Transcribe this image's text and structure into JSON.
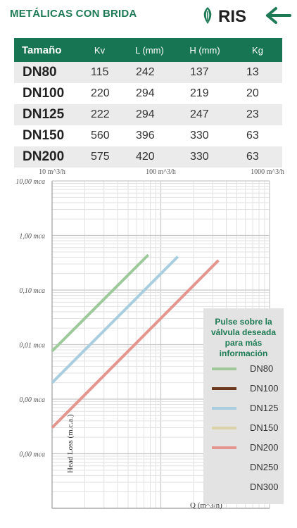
{
  "header": {
    "title": "METÁLICAS CON BRIDA",
    "logo_text": "RIS",
    "brand_color": "#1d7a55"
  },
  "table": {
    "columns": [
      "Tamaño",
      "Kv",
      "L (mm)",
      "H (mm)",
      "Kg"
    ],
    "rows": [
      {
        "size": "DN80",
        "kv": "115",
        "l": "242",
        "h": "137",
        "kg": "13"
      },
      {
        "size": "DN100",
        "kv": "220",
        "l": "294",
        "h": "219",
        "kg": "20"
      },
      {
        "size": "DN125",
        "kv": "222",
        "l": "294",
        "h": "247",
        "kg": "23"
      },
      {
        "size": "DN150",
        "kv": "560",
        "l": "396",
        "h": "330",
        "kg": "63"
      },
      {
        "size": "DN200",
        "kv": "575",
        "l": "420",
        "h": "330",
        "kg": "63"
      }
    ]
  },
  "chart_data": {
    "type": "line",
    "x_scale": "log",
    "y_scale": "log",
    "x_ticks": [
      "10 m^3/h",
      "100 m^3/h",
      "1000 m^3/h"
    ],
    "y_ticks": [
      "10,00 mca",
      "1,00 mca",
      "0,10 mca",
      "0,01 mca",
      "0,00 mca",
      "0,00 mca"
    ],
    "xlabel": "Q (m^3/h)",
    "ylabel": "Head Loss (m.c.a.)",
    "xlim": [
      10,
      1000
    ],
    "ylim": [
      1e-05,
      10
    ],
    "grid": true,
    "series": [
      {
        "name": "DN80",
        "color": "#9ec99a",
        "x": [
          10,
          76.6
        ],
        "y": [
          0.0076,
          0.44
        ]
      },
      {
        "name": "DN125",
        "color": "#a9cedf",
        "x": [
          10,
          143.5
        ],
        "y": [
          0.002,
          0.41
        ]
      },
      {
        "name": "DN200",
        "color": "#e3958e",
        "x": [
          10,
          339
        ],
        "y": [
          0.0003,
          0.35
        ]
      }
    ]
  },
  "legend": {
    "title_lines": [
      "Pulse sobre la",
      "válvula deseada",
      "para más",
      "información"
    ],
    "items": [
      {
        "label": "DN80",
        "color": "#9ec99a"
      },
      {
        "label": "DN100",
        "color": "#6b3a1e"
      },
      {
        "label": "DN125",
        "color": "#a9cedf"
      },
      {
        "label": "DN150",
        "color": "#ddd3a8"
      },
      {
        "label": "DN200",
        "color": "#e3958e"
      },
      {
        "label": "DN250",
        "color": ""
      },
      {
        "label": "DN300",
        "color": ""
      }
    ]
  }
}
